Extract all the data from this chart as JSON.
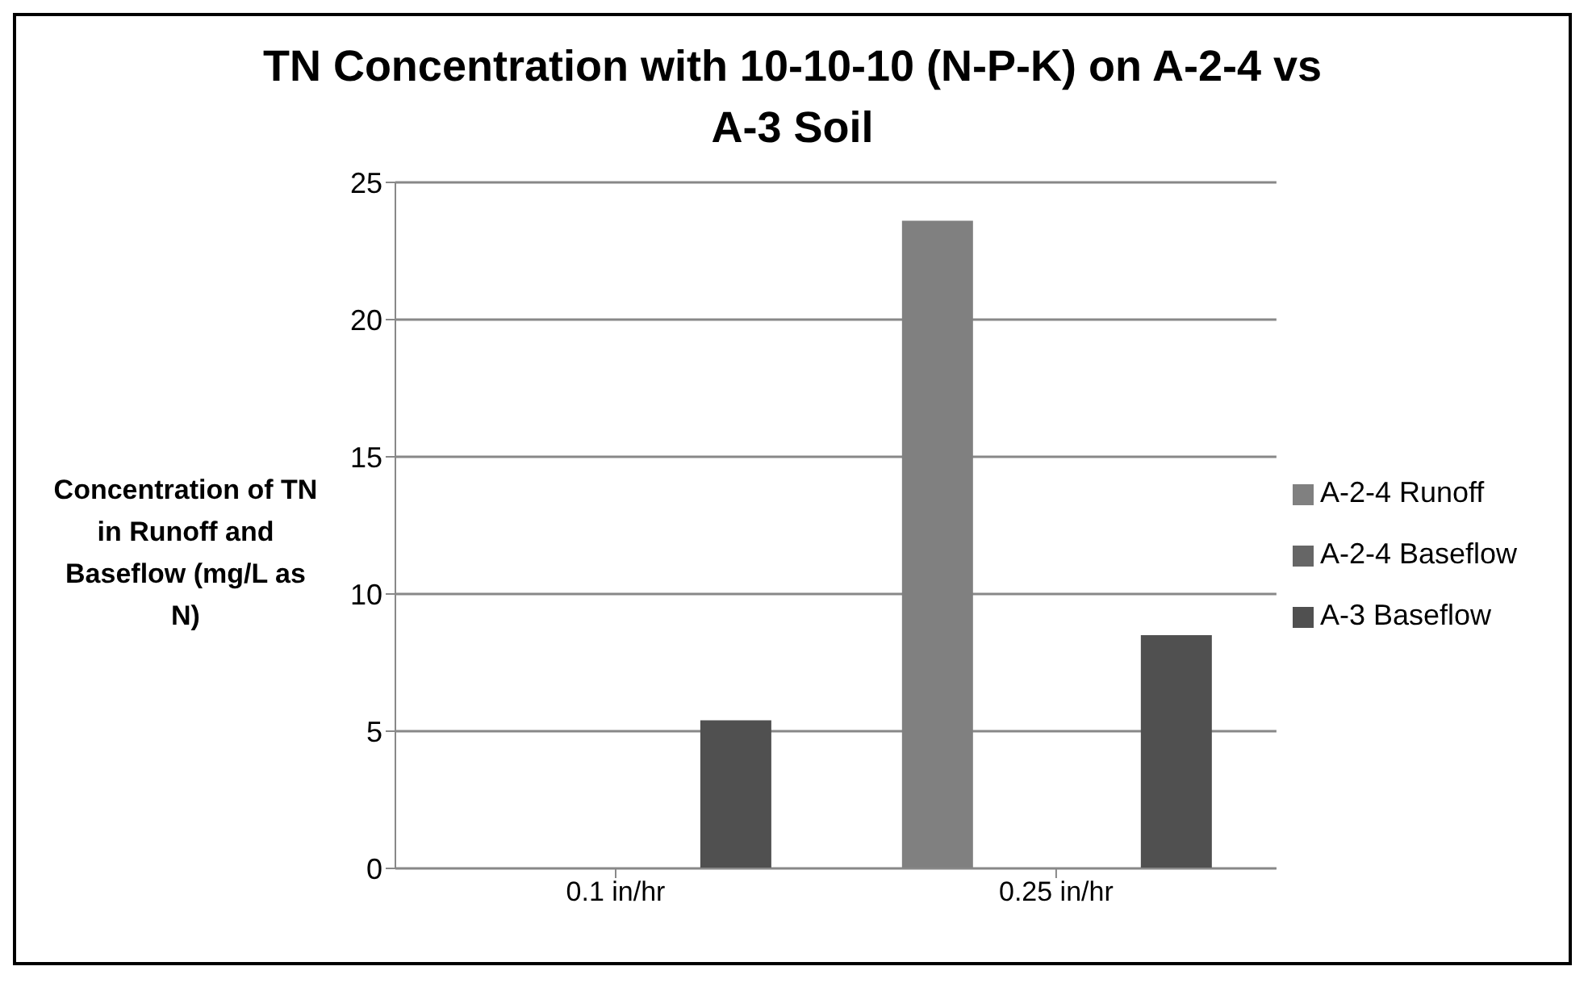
{
  "chart_data": {
    "type": "bar",
    "title": "TN Concentration with 10-10-10 (N-P-K) on A-2-4 vs A-3 Soil",
    "ylabel": "Concentration of TN in Runoff and Baseflow (mg/L as N)",
    "categories": [
      "0.1 in/hr",
      "0.25 in/hr"
    ],
    "series": [
      {
        "name": "A-2-4 Runoff",
        "color": "#808080",
        "values": [
          null,
          23.6
        ]
      },
      {
        "name": "A-2-4 Baseflow",
        "color": "#666666",
        "values": [
          null,
          null
        ]
      },
      {
        "name": "A-3 Baseflow",
        "color": "#505050",
        "values": [
          5.4,
          8.5
        ]
      }
    ],
    "ylim": [
      0,
      25
    ],
    "yticks": [
      0,
      5,
      10,
      15,
      20,
      25
    ],
    "grid": "y",
    "legend": "right"
  }
}
